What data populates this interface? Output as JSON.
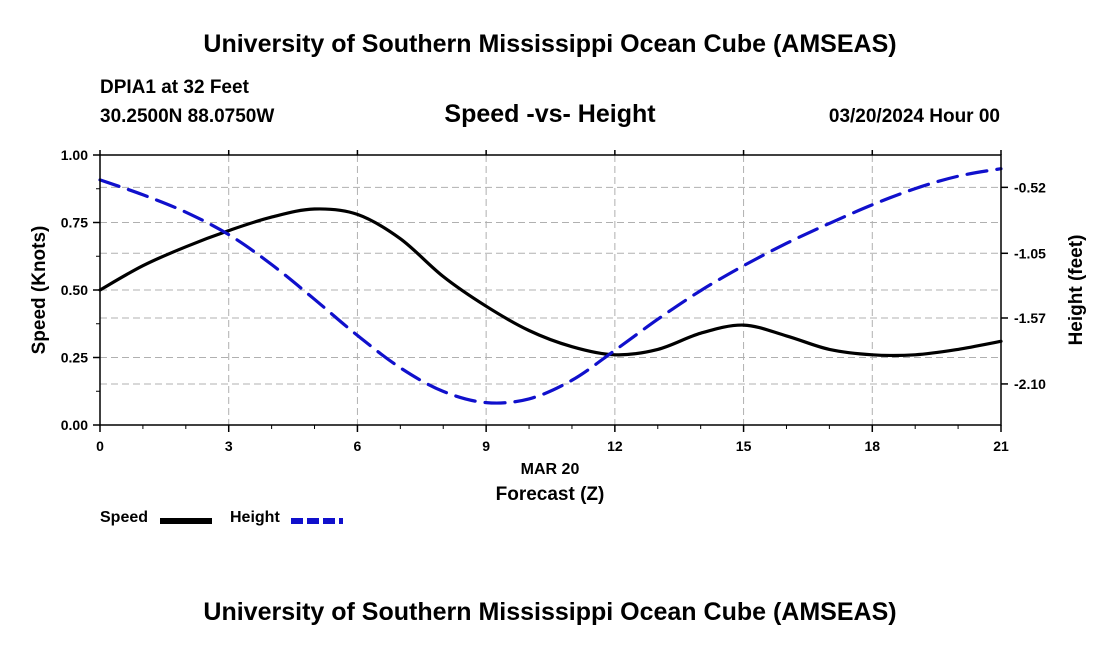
{
  "header": {
    "title": "University of Southern Mississippi Ocean Cube (AMSEAS)",
    "station": "DPIA1 at 32 Feet",
    "coords": "30.2500N  88.0750W",
    "subtitle": "Speed -vs- Height",
    "datetime": "03/20/2024 Hour 00"
  },
  "footer": {
    "title": "University of Southern Mississippi Ocean Cube (AMSEAS)"
  },
  "legend": {
    "speed_label": "Speed",
    "height_label": "Height"
  },
  "colors": {
    "speed": "#000000",
    "height": "#1010cc",
    "grid": "#b0b0b0"
  },
  "chart_data": {
    "type": "line",
    "title": "Speed -vs- Height",
    "xlabel": "Forecast (Z)",
    "xlabel_date": "MAR 20",
    "ylabel": "Speed (Knots)",
    "y2label": "Height (feet)",
    "xlim": [
      0,
      21
    ],
    "ylim": [
      0,
      1
    ],
    "y2lim": [
      -2.43,
      -0.26
    ],
    "x_ticks": [
      0,
      3,
      6,
      9,
      12,
      15,
      18,
      21
    ],
    "x_tick_labels": [
      "0",
      "3",
      "6",
      "9",
      "12",
      "15",
      "18",
      "21"
    ],
    "y_ticks": [
      0,
      0.25,
      0.5,
      0.75,
      1.0
    ],
    "y_tick_labels": [
      "0.00",
      "0.25",
      "0.50",
      "0.75",
      "1.00"
    ],
    "y2_ticks": [
      -0.52,
      -1.05,
      -1.57,
      -2.1
    ],
    "y2_tick_labels": [
      "-0.52",
      "-1.05",
      "-1.57",
      "-2.10"
    ],
    "grid": true,
    "series": [
      {
        "name": "Speed",
        "axis": "left",
        "style": "solid",
        "x": [
          0,
          1,
          2,
          3,
          4,
          5,
          6,
          7,
          8,
          9,
          10,
          11,
          12,
          13,
          14,
          15,
          16,
          17,
          18,
          19,
          20,
          21
        ],
        "values": [
          0.5,
          0.59,
          0.66,
          0.72,
          0.77,
          0.8,
          0.78,
          0.69,
          0.55,
          0.44,
          0.35,
          0.29,
          0.26,
          0.28,
          0.34,
          0.37,
          0.33,
          0.28,
          0.26,
          0.26,
          0.28,
          0.31
        ]
      },
      {
        "name": "Height",
        "axis": "right",
        "style": "dashed",
        "x": [
          0,
          1,
          2,
          3,
          4,
          5,
          6,
          7,
          8,
          9,
          10,
          11,
          12,
          13,
          14,
          15,
          16,
          17,
          18,
          19,
          20,
          21
        ],
        "values": [
          -0.46,
          -0.58,
          -0.72,
          -0.9,
          -1.14,
          -1.42,
          -1.71,
          -1.97,
          -2.16,
          -2.25,
          -2.22,
          -2.07,
          -1.83,
          -1.58,
          -1.35,
          -1.15,
          -0.97,
          -0.81,
          -0.66,
          -0.53,
          -0.43,
          -0.37
        ]
      }
    ]
  }
}
